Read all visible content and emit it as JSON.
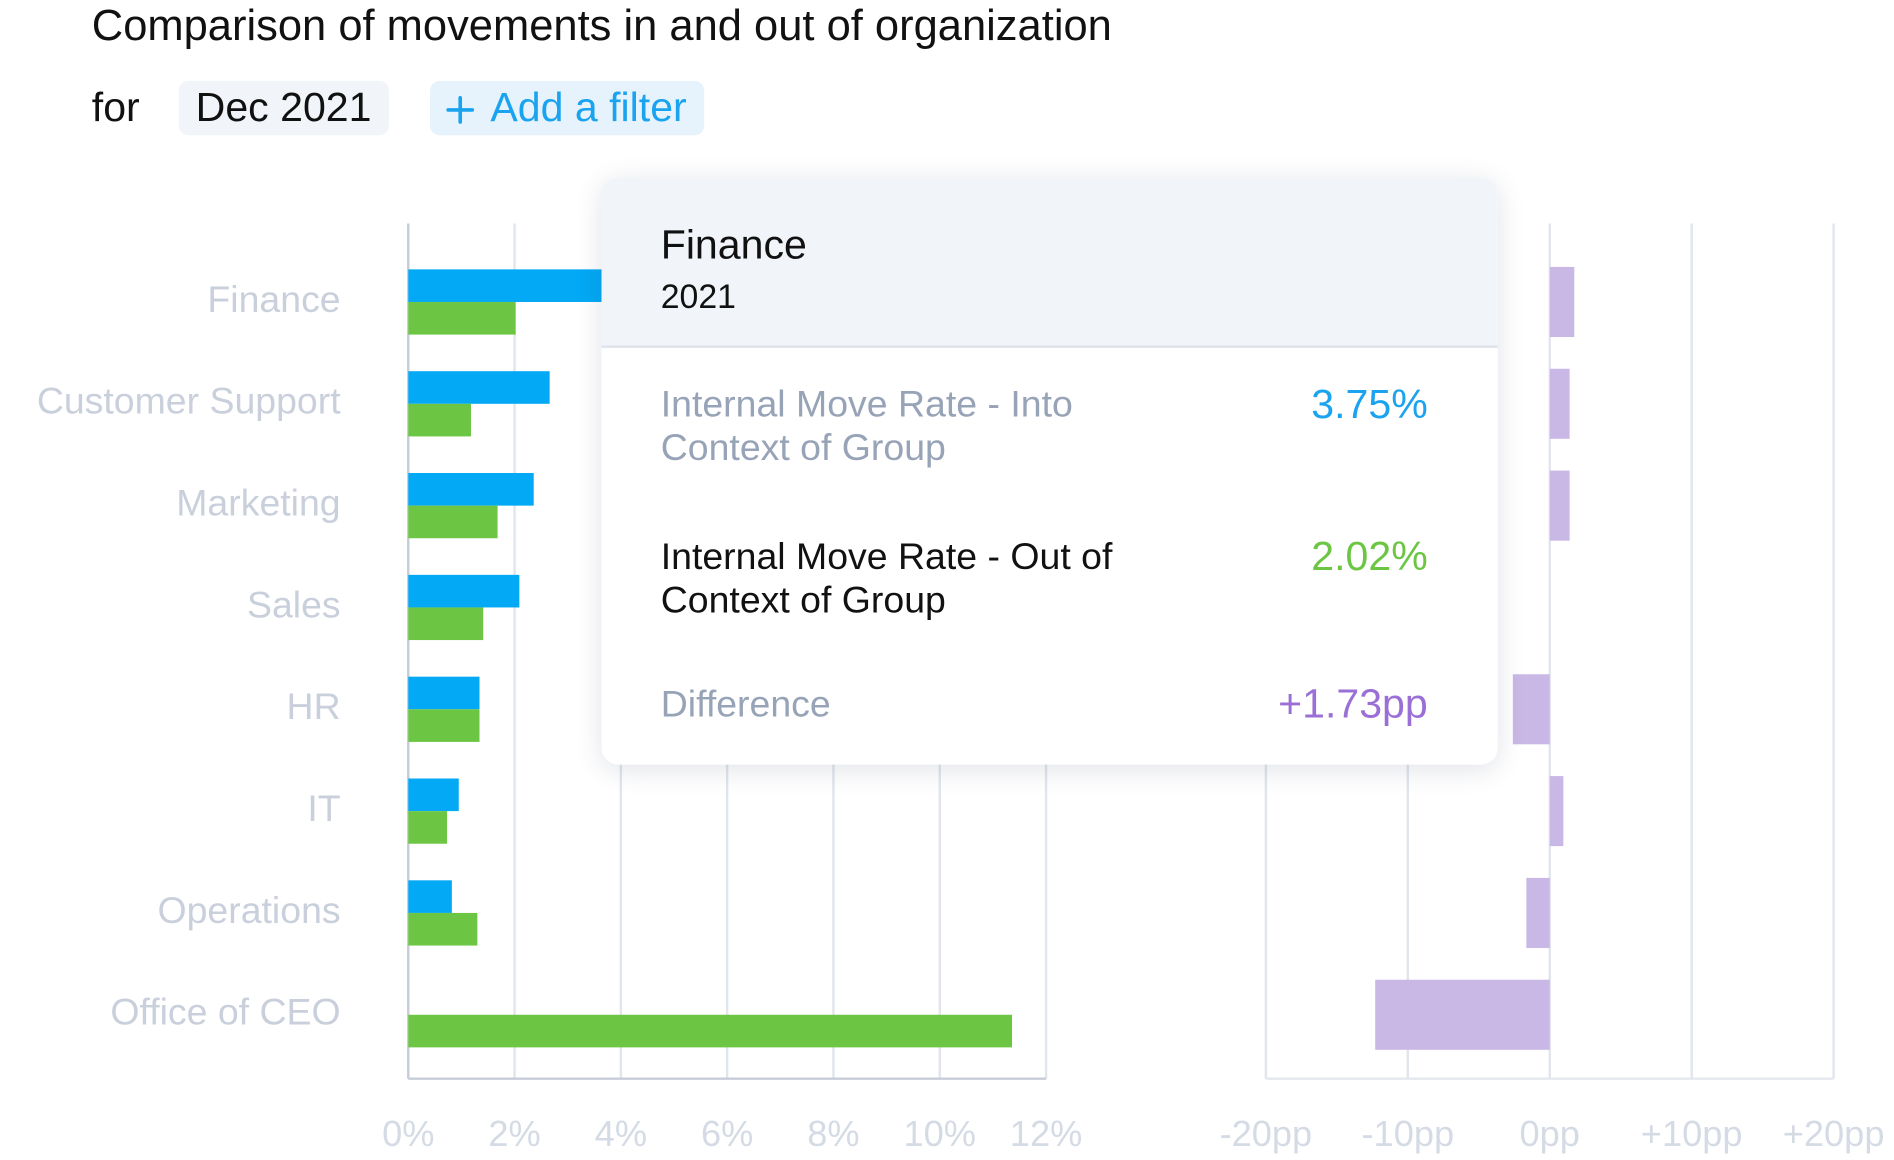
{
  "header": {
    "title": "Comparison of movements in and out of organization",
    "for": "for",
    "period": "Dec 2021",
    "add_filter": "Add a filter"
  },
  "tooltip": {
    "title": "Finance",
    "subtitle": "2021",
    "rows": [
      {
        "label": "Internal Move Rate - Into Context of Group",
        "value": "3.75%",
        "color": "#1aa3ee",
        "label_color": "#97a3b6"
      },
      {
        "label": "Internal Move Rate - Out of Context of Group",
        "value": "2.02%",
        "color": "#6cc644",
        "label_color": "#111111"
      },
      {
        "label": "Difference",
        "value": "+1.73pp",
        "color": "#9a6fd6",
        "label_color": "#97a3b6"
      }
    ]
  },
  "chart_data": [
    {
      "type": "hbar",
      "categories": [
        "Finance",
        "Customer Support",
        "Marketing",
        "Sales",
        "HR",
        "IT",
        "Operations",
        "Office of CEO"
      ],
      "series": [
        {
          "color": "#03a9f4",
          "values": [
            3.75,
            2.66,
            2.36,
            2.09,
            1.34,
            0.95,
            0.82,
            0
          ]
        },
        {
          "color": "#6cc644",
          "values": [
            2.02,
            1.18,
            1.68,
            1.41,
            1.34,
            0.73,
            1.3,
            11.36
          ]
        }
      ],
      "xlim": [
        0,
        12
      ],
      "xticks": [
        {
          "value": 0,
          "label": "0%"
        },
        {
          "value": 2,
          "label": "2%"
        },
        {
          "value": 4,
          "label": "4%"
        },
        {
          "value": 6,
          "label": "6%"
        },
        {
          "value": 8,
          "label": "8%"
        },
        {
          "value": 10,
          "label": "10%"
        },
        {
          "value": 12,
          "label": "12%"
        }
      ],
      "grid": true
    },
    {
      "type": "diverging-bar",
      "series": [
        {
          "color": "#c9b8e6",
          "values": [
            1.73,
            1.4,
            1.4,
            0,
            -2.6,
            0.96,
            -1.65,
            -12.3
          ]
        }
      ],
      "xlim": [
        -20,
        20
      ],
      "xticks": [
        {
          "value": -20,
          "label": "-20pp"
        },
        {
          "value": -10,
          "label": "-10pp"
        },
        {
          "value": 0,
          "label": "0pp"
        },
        {
          "value": 10,
          "label": "+10pp"
        },
        {
          "value": 20,
          "label": "+20pp"
        }
      ],
      "grid": true
    }
  ]
}
